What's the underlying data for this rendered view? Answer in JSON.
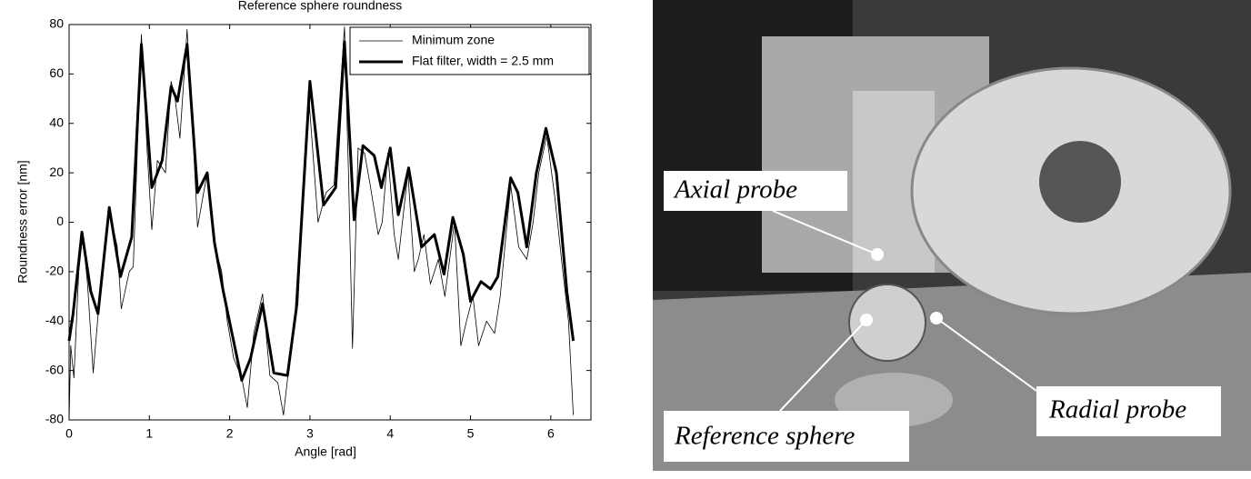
{
  "chart_data": {
    "type": "line",
    "title": "Reference sphere roundness",
    "x_label": "Angle [rad]",
    "y_label": "Roundness error [nm]",
    "xlim": [
      0,
      6.5
    ],
    "ylim": [
      -80,
      80
    ],
    "xticks": [
      0,
      1,
      2,
      3,
      4,
      5,
      6
    ],
    "yticks": [
      -80,
      -60,
      -40,
      -20,
      0,
      20,
      40,
      60,
      80
    ],
    "legend": "upper right",
    "series": [
      {
        "name": "Minimum zone",
        "color": "#000000",
        "width": 0.8,
        "x": [
          0,
          0.02,
          0.06,
          0.12,
          0.17,
          0.23,
          0.3,
          0.38,
          0.5,
          0.6,
          0.65,
          0.75,
          0.8,
          0.9,
          0.97,
          1.03,
          1.1,
          1.2,
          1.27,
          1.32,
          1.38,
          1.47,
          1.55,
          1.6,
          1.72,
          1.82,
          1.9,
          1.97,
          2.05,
          2.15,
          2.22,
          2.3,
          2.41,
          2.5,
          2.6,
          2.67,
          2.75,
          2.85,
          2.98,
          3.1,
          3.2,
          3.3,
          3.43,
          3.48,
          3.53,
          3.6,
          3.68,
          3.75,
          3.85,
          3.9,
          3.97,
          4.05,
          4.1,
          4.22,
          4.3,
          4.35,
          4.42,
          4.5,
          4.6,
          4.68,
          4.8,
          4.88,
          4.95,
          5.03,
          5.1,
          5.2,
          5.3,
          5.37,
          5.5,
          5.6,
          5.7,
          5.78,
          5.85,
          5.95,
          6.05,
          6.15,
          6.22,
          6.28
        ],
        "y": [
          -80,
          -50,
          -63,
          -20,
          -5,
          -25,
          -61,
          -30,
          5,
          -10,
          -35,
          -20,
          -18,
          76,
          30,
          -3,
          25,
          20,
          57,
          50,
          34,
          78,
          30,
          -2,
          20,
          -10,
          -20,
          -40,
          -55,
          -63,
          -75,
          -45,
          -29,
          -62,
          -65,
          -78,
          -55,
          -33,
          53,
          0,
          12,
          15,
          79,
          20,
          -51,
          30,
          28,
          15,
          -5,
          0,
          28,
          -5,
          -15,
          20,
          -20,
          -15,
          -5,
          -25,
          -15,
          -30,
          0,
          -50,
          -40,
          -30,
          -50,
          -40,
          -45,
          -30,
          15,
          -10,
          -15,
          0,
          20,
          35,
          10,
          -20,
          -40,
          -78
        ]
      },
      {
        "name": "Flat filter, width = 2.5 mm",
        "color": "#000000",
        "width": 3,
        "x": [
          0,
          0.05,
          0.16,
          0.27,
          0.36,
          0.5,
          0.64,
          0.78,
          0.9,
          1.03,
          1.16,
          1.27,
          1.35,
          1.47,
          1.6,
          1.72,
          1.81,
          1.92,
          2.15,
          2.26,
          2.41,
          2.55,
          2.72,
          2.83,
          3.0,
          3.17,
          3.32,
          3.43,
          3.55,
          3.66,
          3.8,
          3.89,
          4.0,
          4.1,
          4.23,
          4.39,
          4.55,
          4.67,
          4.78,
          4.91,
          5.0,
          5.13,
          5.25,
          5.34,
          5.5,
          5.59,
          5.7,
          5.82,
          5.94,
          6.07,
          6.2,
          6.28
        ],
        "y": [
          -48,
          -37,
          -4,
          -28,
          -37,
          6,
          -22,
          -6,
          72,
          14,
          25,
          55,
          49,
          72,
          12,
          20,
          -8,
          -28,
          -64,
          -55,
          -33,
          -61,
          -62,
          -35,
          57,
          7,
          14,
          73,
          1,
          31,
          27,
          14,
          30,
          3,
          22,
          -10,
          -5,
          -21,
          2,
          -13,
          -32,
          -24,
          -27,
          -22,
          18,
          12,
          -10,
          20,
          38,
          20,
          -28,
          -48
        ]
      }
    ]
  },
  "photo": {
    "labels": [
      "Axial probe",
      "Reference sphere",
      "Radial probe"
    ]
  }
}
